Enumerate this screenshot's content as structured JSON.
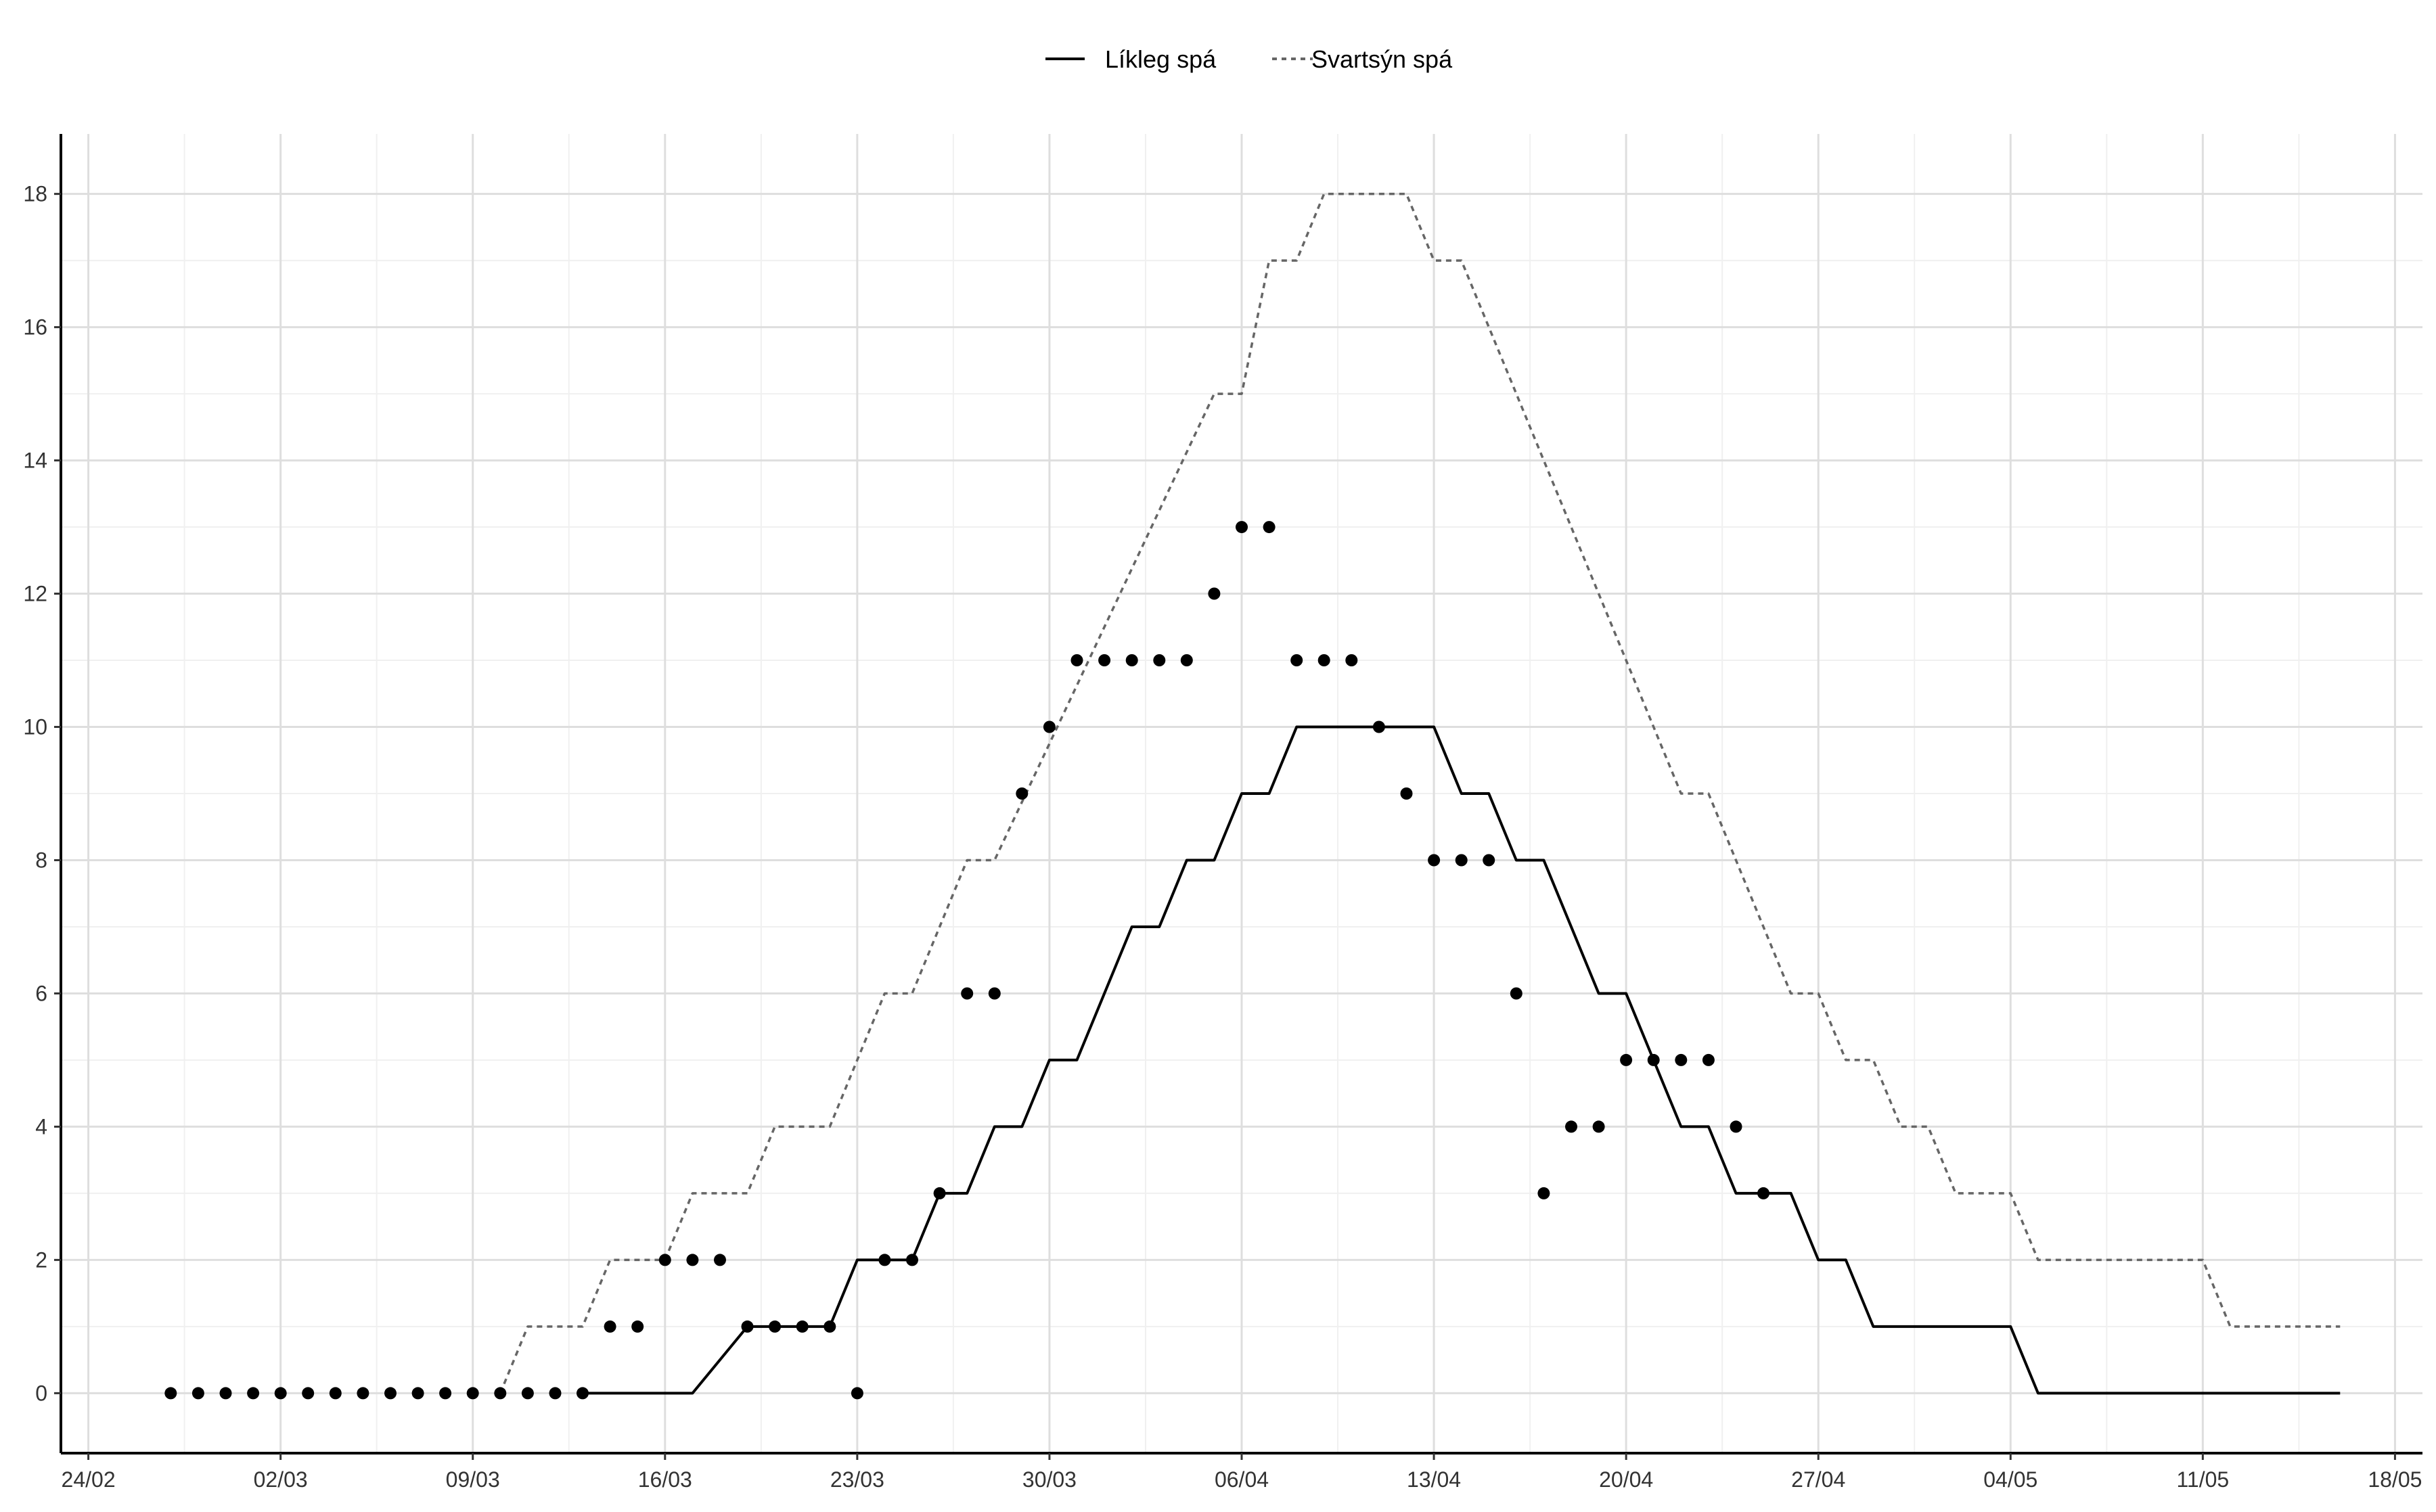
{
  "chart_data": {
    "type": "line",
    "x_unit": "date (dd/mm), 2020",
    "x_tick_labels": [
      "24/02",
      "02/03",
      "09/03",
      "16/03",
      "23/03",
      "30/03",
      "06/04",
      "13/04",
      "20/04",
      "27/04",
      "04/05",
      "11/05",
      "18/05"
    ],
    "x_tick_dates": [
      "2020-02-24",
      "2020-03-02",
      "2020-03-09",
      "2020-03-16",
      "2020-03-23",
      "2020-03-30",
      "2020-04-06",
      "2020-04-13",
      "2020-04-20",
      "2020-04-27",
      "2020-05-04",
      "2020-05-11",
      "2020-05-18"
    ],
    "xlim": [
      "2020-02-23",
      "2020-05-19"
    ],
    "ylim": [
      -0.9,
      18.9
    ],
    "y_ticks": [
      0,
      2,
      4,
      6,
      8,
      10,
      12,
      14,
      16,
      18
    ],
    "grid": true,
    "legend_position": "top-center",
    "series": [
      {
        "name": "Líkleg spá",
        "style": "solid",
        "color": "#000000",
        "kind": "step",
        "points": [
          [
            "2020-03-13",
            0
          ],
          [
            "2020-03-17",
            0
          ],
          [
            "2020-03-19",
            1
          ],
          [
            "2020-03-22",
            1
          ],
          [
            "2020-03-23",
            2
          ],
          [
            "2020-03-25",
            2
          ],
          [
            "2020-03-26",
            3
          ],
          [
            "2020-03-27",
            3
          ],
          [
            "2020-03-28",
            4
          ],
          [
            "2020-03-29",
            4
          ],
          [
            "2020-03-30",
            5
          ],
          [
            "2020-03-31",
            5
          ],
          [
            "2020-04-02",
            7
          ],
          [
            "2020-04-03",
            7
          ],
          [
            "2020-04-04",
            8
          ],
          [
            "2020-04-05",
            8
          ],
          [
            "2020-04-06",
            9
          ],
          [
            "2020-04-07",
            9
          ],
          [
            "2020-04-08",
            10
          ],
          [
            "2020-04-13",
            10
          ],
          [
            "2020-04-14",
            9
          ],
          [
            "2020-04-15",
            9
          ],
          [
            "2020-04-16",
            8
          ],
          [
            "2020-04-17",
            8
          ],
          [
            "2020-04-19",
            6
          ],
          [
            "2020-04-20",
            6
          ],
          [
            "2020-04-22",
            4
          ],
          [
            "2020-04-23",
            4
          ],
          [
            "2020-04-24",
            3
          ],
          [
            "2020-04-26",
            3
          ],
          [
            "2020-04-27",
            2
          ],
          [
            "2020-04-28",
            2
          ],
          [
            "2020-04-29",
            1
          ],
          [
            "2020-05-04",
            1
          ],
          [
            "2020-05-05",
            0
          ],
          [
            "2020-05-16",
            0
          ]
        ]
      },
      {
        "name": "Svartsýn spá",
        "style": "dashed",
        "color": "#666666",
        "kind": "step",
        "points": [
          [
            "2020-03-10",
            0
          ],
          [
            "2020-03-11",
            1
          ],
          [
            "2020-03-13",
            1
          ],
          [
            "2020-03-14",
            2
          ],
          [
            "2020-03-16",
            2
          ],
          [
            "2020-03-17",
            3
          ],
          [
            "2020-03-19",
            3
          ],
          [
            "2020-03-20",
            4
          ],
          [
            "2020-03-22",
            4
          ],
          [
            "2020-03-24",
            6
          ],
          [
            "2020-03-25",
            6
          ],
          [
            "2020-03-27",
            8
          ],
          [
            "2020-03-28",
            8
          ],
          [
            "2020-04-05",
            15
          ],
          [
            "2020-04-06",
            15
          ],
          [
            "2020-04-07",
            17
          ],
          [
            "2020-04-08",
            17
          ],
          [
            "2020-04-09",
            18
          ],
          [
            "2020-04-12",
            18
          ],
          [
            "2020-04-13",
            17
          ],
          [
            "2020-04-14",
            17
          ],
          [
            "2020-04-21",
            10
          ],
          [
            "2020-04-22",
            9
          ],
          [
            "2020-04-23",
            9
          ],
          [
            "2020-04-26",
            6
          ],
          [
            "2020-04-27",
            6
          ],
          [
            "2020-04-28",
            5
          ],
          [
            "2020-04-29",
            5
          ],
          [
            "2020-04-30",
            4
          ],
          [
            "2020-05-01",
            4
          ],
          [
            "2020-05-02",
            3
          ],
          [
            "2020-05-04",
            3
          ],
          [
            "2020-05-05",
            2
          ],
          [
            "2020-05-11",
            2
          ],
          [
            "2020-05-12",
            1
          ],
          [
            "2020-05-16",
            1
          ]
        ]
      }
    ],
    "observed_points": [
      [
        "2020-02-27",
        0
      ],
      [
        "2020-02-28",
        0
      ],
      [
        "2020-02-29",
        0
      ],
      [
        "2020-03-01",
        0
      ],
      [
        "2020-03-02",
        0
      ],
      [
        "2020-03-03",
        0
      ],
      [
        "2020-03-04",
        0
      ],
      [
        "2020-03-05",
        0
      ],
      [
        "2020-03-06",
        0
      ],
      [
        "2020-03-07",
        0
      ],
      [
        "2020-03-08",
        0
      ],
      [
        "2020-03-09",
        0
      ],
      [
        "2020-03-10",
        0
      ],
      [
        "2020-03-11",
        0
      ],
      [
        "2020-03-12",
        0
      ],
      [
        "2020-03-13",
        0
      ],
      [
        "2020-03-14",
        1
      ],
      [
        "2020-03-15",
        1
      ],
      [
        "2020-03-16",
        2
      ],
      [
        "2020-03-17",
        2
      ],
      [
        "2020-03-18",
        2
      ],
      [
        "2020-03-19",
        1
      ],
      [
        "2020-03-20",
        1
      ],
      [
        "2020-03-21",
        1
      ],
      [
        "2020-03-22",
        1
      ],
      [
        "2020-03-23",
        0
      ],
      [
        "2020-03-24",
        2
      ],
      [
        "2020-03-25",
        2
      ],
      [
        "2020-03-26",
        3
      ],
      [
        "2020-03-27",
        6
      ],
      [
        "2020-03-28",
        6
      ],
      [
        "2020-03-29",
        9
      ],
      [
        "2020-03-30",
        10
      ],
      [
        "2020-03-31",
        11
      ],
      [
        "2020-04-01",
        11
      ],
      [
        "2020-04-02",
        11
      ],
      [
        "2020-04-03",
        11
      ],
      [
        "2020-04-04",
        11
      ],
      [
        "2020-04-05",
        12
      ],
      [
        "2020-04-06",
        13
      ],
      [
        "2020-04-07",
        13
      ],
      [
        "2020-04-08",
        11
      ],
      [
        "2020-04-09",
        11
      ],
      [
        "2020-04-10",
        11
      ],
      [
        "2020-04-11",
        10
      ],
      [
        "2020-04-12",
        9
      ],
      [
        "2020-04-13",
        8
      ],
      [
        "2020-04-14",
        8
      ],
      [
        "2020-04-15",
        8
      ],
      [
        "2020-04-16",
        6
      ],
      [
        "2020-04-17",
        3
      ],
      [
        "2020-04-18",
        4
      ],
      [
        "2020-04-19",
        4
      ],
      [
        "2020-04-20",
        5
      ],
      [
        "2020-04-21",
        5
      ],
      [
        "2020-04-22",
        5
      ],
      [
        "2020-04-23",
        5
      ],
      [
        "2020-04-24",
        4
      ],
      [
        "2020-04-25",
        3
      ]
    ]
  }
}
